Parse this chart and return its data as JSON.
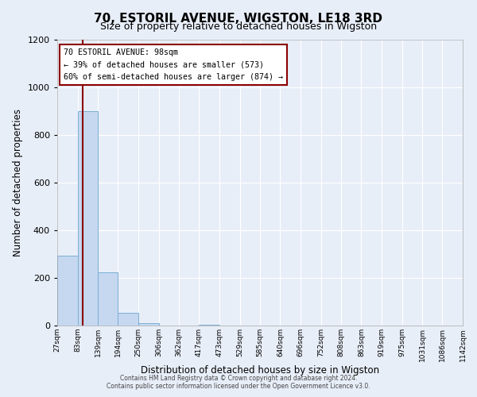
{
  "title": "70, ESTORIL AVENUE, WIGSTON, LE18 3RD",
  "subtitle": "Size of property relative to detached houses in Wigston",
  "xlabel": "Distribution of detached houses by size in Wigston",
  "ylabel": "Number of detached properties",
  "bin_edges": [
    27,
    83,
    139,
    194,
    250,
    306,
    362,
    417,
    473,
    529,
    585,
    640,
    696,
    752,
    808,
    863,
    919,
    975,
    1031,
    1086,
    1142
  ],
  "bar_heights": [
    295,
    900,
    222,
    55,
    10,
    0,
    0,
    3,
    0,
    0,
    0,
    0,
    0,
    0,
    0,
    0,
    0,
    0,
    0,
    0
  ],
  "bar_color": "#c5d8f0",
  "bar_edgecolor": "#7bafd4",
  "property_size": 98,
  "property_line_color": "#8b0000",
  "annotation_line1": "70 ESTORIL AVENUE: 98sqm",
  "annotation_line2": "← 39% of detached houses are smaller (573)",
  "annotation_line3": "60% of semi-detached houses are larger (874) →",
  "annotation_box_edgecolor": "#8b0000",
  "annotation_box_facecolor": "#ffffff",
  "ylim": [
    0,
    1200
  ],
  "yticks": [
    0,
    200,
    400,
    600,
    800,
    1000,
    1200
  ],
  "background_color": "#e8eef8",
  "grid_color": "#ffffff",
  "footer_line1": "Contains HM Land Registry data © Crown copyright and database right 2024.",
  "footer_line2": "Contains public sector information licensed under the Open Government Licence v3.0.",
  "title_fontsize": 11,
  "subtitle_fontsize": 9
}
